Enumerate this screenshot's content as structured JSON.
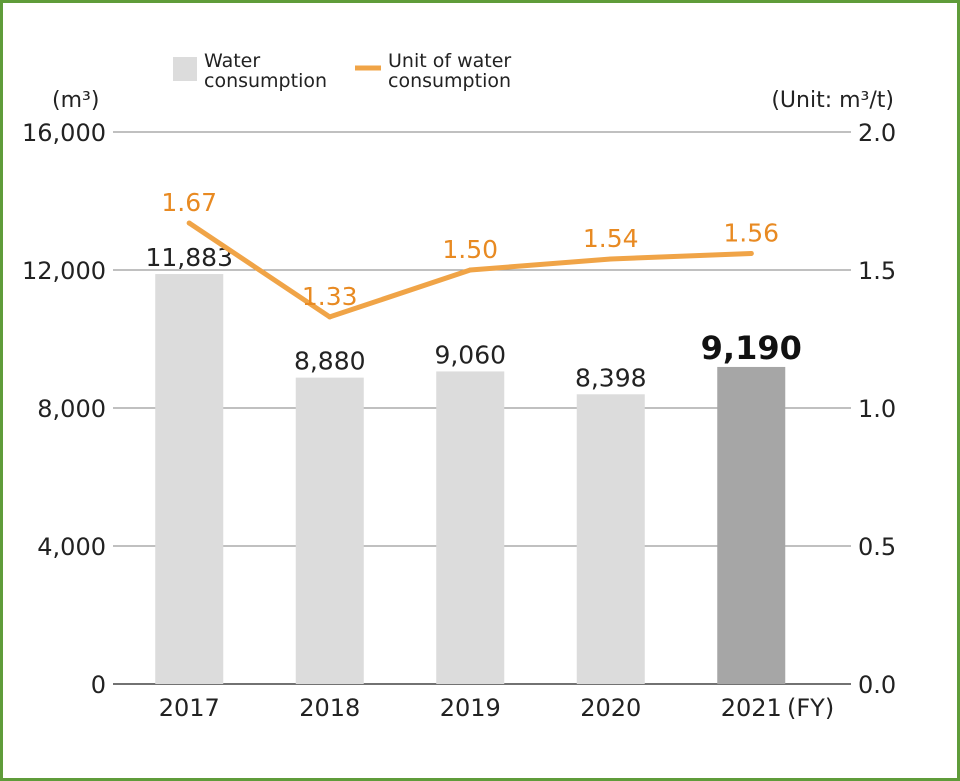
{
  "chart_data": {
    "type": "bar",
    "categories": [
      "2017",
      "2018",
      "2019",
      "2020",
      "2021"
    ],
    "x_unit": "(FY)",
    "series": [
      {
        "name": "Water consumption",
        "name_lines": [
          "Water",
          "consumption"
        ],
        "type": "bar",
        "axis": "left",
        "values": [
          11883,
          8880,
          9060,
          8398,
          9190
        ],
        "labels": [
          "11,883",
          "8,880",
          "9,060",
          "8,398",
          "9,190"
        ],
        "color": "#dcdcdc",
        "highlight_color": "#a6a6a6",
        "highlight_index": 4
      },
      {
        "name": "Unit of water consumption",
        "name_lines": [
          "Unit of water",
          "consumption"
        ],
        "type": "line",
        "axis": "right",
        "values": [
          1.67,
          1.33,
          1.5,
          1.54,
          1.56
        ],
        "labels": [
          "1.67",
          "1.33",
          "1.50",
          "1.54",
          "1.56"
        ],
        "color": "#f0a447"
      }
    ],
    "y_left": {
      "unit": "(m³)",
      "ticks": [
        0,
        4000,
        8000,
        12000,
        16000
      ],
      "tick_labels": [
        "0",
        "4,000",
        "8,000",
        "12,000",
        "16,000"
      ],
      "ylim": [
        0,
        16000
      ]
    },
    "y_right": {
      "unit": "(Unit: m³/t)",
      "ticks": [
        0,
        0.5,
        1.0,
        1.5,
        2.0
      ],
      "tick_labels": [
        "0.0",
        "0.5",
        "1.0",
        "1.5",
        "2.0"
      ],
      "ylim": [
        0,
        2.0
      ]
    },
    "grid": true,
    "legend": "top"
  },
  "colors": {
    "border": "#5f9c3a",
    "grid": "#9a9a9a",
    "axis": "#444444",
    "line_label": "#e88a22"
  }
}
